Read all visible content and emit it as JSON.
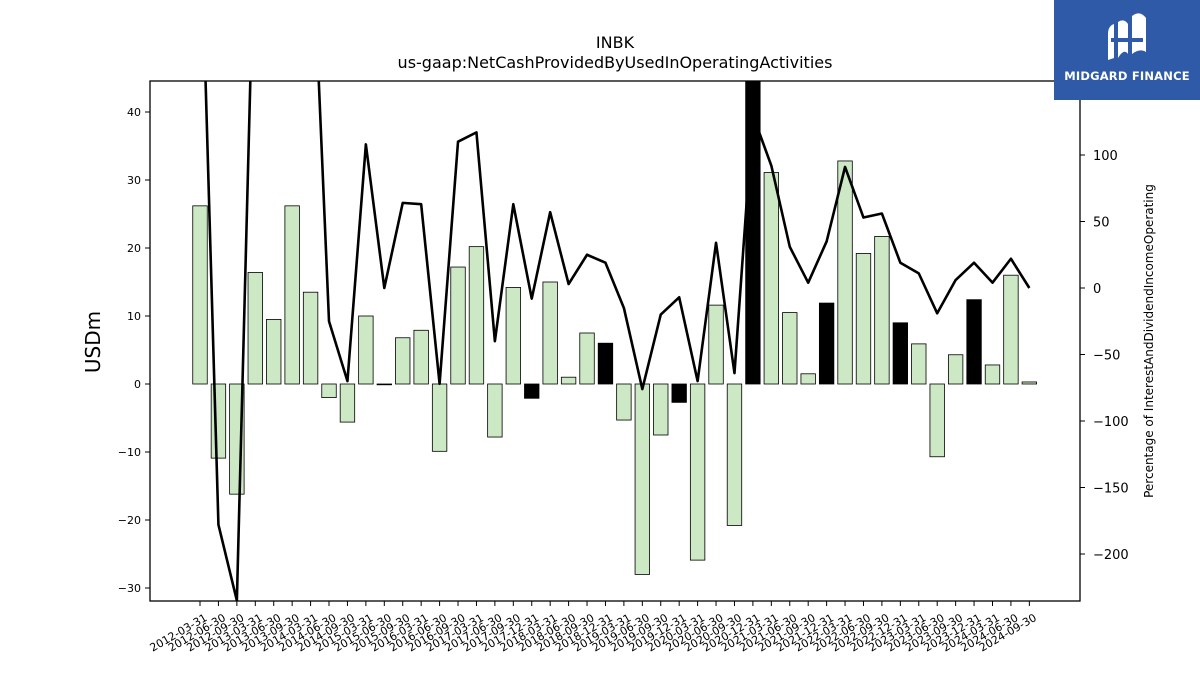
{
  "chart_data": {
    "type": "bar+line",
    "title": "INBK",
    "subtitle": "us-gaap:NetCashProvidedByUsedInOperatingActivities",
    "ylabel": "USDm",
    "y2label": "Percentage of InterestAndDividendIncomeOperating",
    "ylim": [
      -32,
      44.5
    ],
    "y2lim": [
      -235,
      155
    ],
    "yticks": [
      -30,
      -20,
      -10,
      0,
      10,
      20,
      30,
      40
    ],
    "y2ticks": [
      -200,
      -150,
      -100,
      -50,
      0,
      50,
      100
    ],
    "colors": {
      "positive_bar": "#cde8c4",
      "highlight_bar": "#000000",
      "line": "#000000"
    },
    "categories": [
      "2012-03-31",
      "2012-06-30",
      "2012-09-30",
      "2013-03-31",
      "2013-06-30",
      "2013-09-30",
      "2014-03-31",
      "2014-06-30",
      "2014-09-30",
      "2015-03-31",
      "2015-06-30",
      "2015-09-30",
      "2016-03-31",
      "2016-06-30",
      "2016-09-30",
      "2017-03-31",
      "2017-06-30",
      "2017-09-30",
      "2017-12-31",
      "2018-03-31",
      "2018-06-30",
      "2018-09-30",
      "2018-12-31",
      "2019-03-31",
      "2019-06-30",
      "2019-09-30",
      "2019-12-31",
      "2020-03-31",
      "2020-06-30",
      "2020-09-30",
      "2020-12-31",
      "2021-03-31",
      "2021-06-30",
      "2021-09-30",
      "2021-12-31",
      "2022-03-31",
      "2022-06-30",
      "2022-09-30",
      "2022-12-31",
      "2023-03-31",
      "2023-06-30",
      "2023-09-30",
      "2023-12-31",
      "2024-03-31",
      "2024-06-30",
      "2024-09-30"
    ],
    "tick_labels": [
      "2012-03-31",
      "2012-06-30",
      "2012-09-30",
      "2013-03-31",
      "2013-06-30",
      "2013-09-30",
      "2014-03-31",
      "2014-06-30",
      "2014-09-30",
      "2015-03-31",
      "2015-06-30",
      "2015-09-30",
      "2016-03-31",
      "2016-06-30",
      "2016-09-30",
      "2017-03-31",
      "2017-06-30",
      "2017-09-30",
      "2017-12-31",
      "2018-03-31",
      "2018-06-30",
      "2018-09-30",
      "2018-12-31",
      "2019-03-31",
      "2019-06-30",
      "2019-09-30",
      "2019-12-31",
      "2020-03-31",
      "2020-06-30",
      "2020-09-30",
      "2020-12-31",
      "2021-03-31",
      "2021-06-30",
      "2021-09-30",
      "2021-12-31",
      "2022-03-31",
      "2022-06-30",
      "2022-09-30",
      "2022-12-31",
      "2023-03-31",
      "2023-06-30",
      "2023-09-30",
      "2023-12-31",
      "2024-03-31",
      "2024-06-30",
      "2024-09-30"
    ],
    "bars": [
      26.2,
      -10.9,
      -16.2,
      16.4,
      9.5,
      26.2,
      13.5,
      -2.0,
      -5.6,
      10.0,
      -0.1,
      6.8,
      7.9,
      -9.9,
      17.2,
      20.2,
      -7.8,
      14.2,
      -2.1,
      15.0,
      1.0,
      7.5,
      6.0,
      -5.3,
      -28.0,
      -7.5,
      -2.7,
      -25.9,
      11.6,
      -20.8,
      45.0,
      31.1,
      10.5,
      1.5,
      11.9,
      32.8,
      19.2,
      21.7,
      9.0,
      5.9,
      -10.7,
      4.3,
      12.4,
      2.8,
      16.0,
      0.3
    ],
    "bar_highlight": [
      false,
      false,
      false,
      false,
      false,
      false,
      false,
      false,
      false,
      false,
      false,
      false,
      false,
      false,
      false,
      false,
      false,
      false,
      true,
      false,
      false,
      false,
      true,
      false,
      false,
      false,
      true,
      false,
      false,
      false,
      true,
      false,
      false,
      false,
      true,
      false,
      false,
      false,
      true,
      false,
      false,
      false,
      true,
      false,
      false,
      false
    ],
    "line": [
      300,
      -178,
      -235,
      300,
      300,
      300,
      300,
      -25,
      -70,
      108,
      0,
      64,
      63,
      -72,
      110,
      117,
      -40,
      63,
      -8,
      57,
      3,
      25,
      19,
      -15,
      -76,
      -20,
      -7,
      -70,
      34,
      -64,
      130,
      92,
      31,
      4,
      35,
      91,
      53,
      56,
      19,
      11,
      -19,
      6,
      19,
      4,
      22,
      0
    ]
  },
  "logo": {
    "text": "MIDGARD FINANCE"
  }
}
